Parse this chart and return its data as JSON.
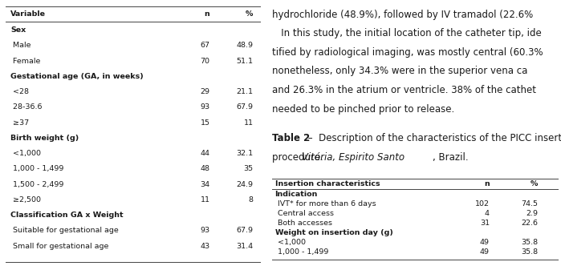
{
  "left_table": {
    "header": [
      "Variable",
      "n",
      "%"
    ],
    "rows": [
      {
        "label": "Sex",
        "bold": true,
        "n": "",
        "pct": ""
      },
      {
        "label": " Male",
        "bold": false,
        "n": "67",
        "pct": "48.9"
      },
      {
        "label": " Female",
        "bold": false,
        "n": "70",
        "pct": "51.1"
      },
      {
        "label": "Gestational age (GA, in weeks)",
        "bold": true,
        "n": "",
        "pct": ""
      },
      {
        "label": " <28",
        "bold": false,
        "n": "29",
        "pct": "21.1"
      },
      {
        "label": " 28-36.6",
        "bold": false,
        "n": "93",
        "pct": "67.9"
      },
      {
        "label": " ≥37",
        "bold": false,
        "n": "15",
        "pct": "11"
      },
      {
        "label": "Birth weight (g)",
        "bold": true,
        "n": "",
        "pct": ""
      },
      {
        "label": " <1,000",
        "bold": false,
        "n": "44",
        "pct": "32.1"
      },
      {
        "label": " 1,000 - 1,499",
        "bold": false,
        "n": "48",
        "pct": "35"
      },
      {
        "label": " 1,500 - 2,499",
        "bold": false,
        "n": "34",
        "pct": "24.9"
      },
      {
        "label": " ≥2,500",
        "bold": false,
        "n": "11",
        "pct": "8"
      },
      {
        "label": "Classification GA x Weight",
        "bold": true,
        "n": "",
        "pct": ""
      },
      {
        "label": " Suitable for gestational age",
        "bold": false,
        "n": "93",
        "pct": "67.9"
      },
      {
        "label": " Small for gestational age",
        "bold": false,
        "n": "43",
        "pct": "31.4"
      }
    ]
  },
  "right_para_lines": [
    "hydrochloride (48.9%), followed by IV tramadol (22.6%",
    "   In this study, the initial location of the catheter tip, ide",
    "tified by radiological imaging, was mostly central (60.3%",
    "nonetheless, only 34.3% were in the superior vena ca",
    "and 26.3% in the atrium or ventricle. 38% of the cathet",
    "needed to be pinched prior to release."
  ],
  "right_table": {
    "title": "Table 2",
    "title_rest": " –  Description of the characteristics of the PICC insertion",
    "subtitle": "procedure. Vitória, Espirito Santo, Brazil.",
    "header": [
      "Insertion characteristics",
      "n",
      "%"
    ],
    "rows": [
      {
        "label": "Indication",
        "bold": true,
        "n": "",
        "pct": ""
      },
      {
        "label": " IVT* for more than 6 days",
        "bold": false,
        "n": "102",
        "pct": "74.5"
      },
      {
        "label": " Central access",
        "bold": false,
        "n": "4",
        "pct": "2.9"
      },
      {
        "label": " Both accesses",
        "bold": false,
        "n": "31",
        "pct": "22.6"
      },
      {
        "label": "Weight on insertion day (g)",
        "bold": true,
        "n": "",
        "pct": ""
      },
      {
        "label": " <1,000",
        "bold": false,
        "n": "49",
        "pct": "35.8"
      },
      {
        "label": " 1,000 - 1,499",
        "bold": false,
        "n": "49",
        "pct": "35.8"
      }
    ]
  },
  "bg_color": "#ffffff",
  "text_color": "#1a1a1a",
  "line_color": "#444444",
  "font_size": 6.8,
  "para_font_size": 8.5
}
